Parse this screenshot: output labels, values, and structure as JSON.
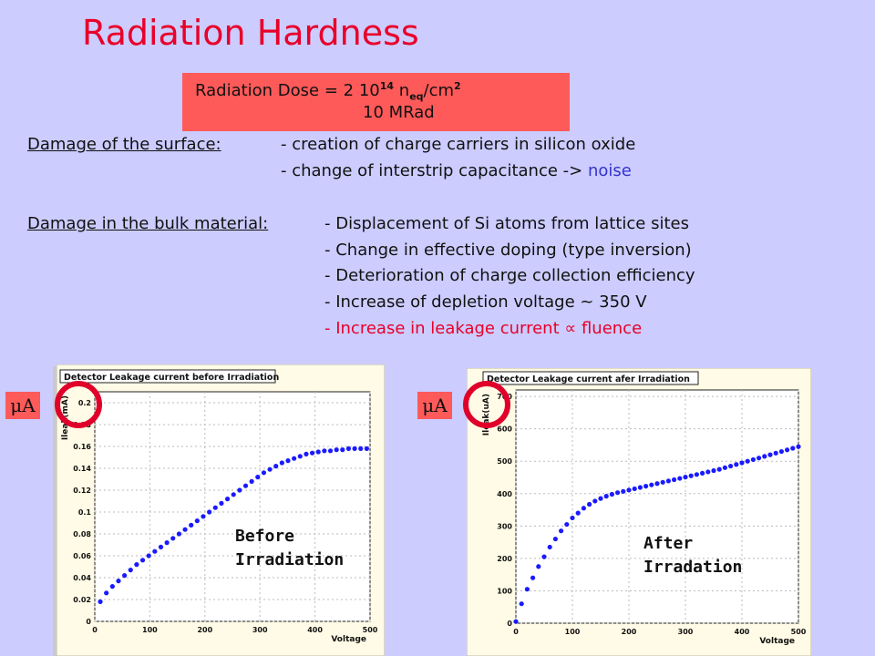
{
  "title": "Radiation Hardness",
  "dose": {
    "line1_prefix": "Radiation Dose = 2 10",
    "line1_exp": "14",
    "line1_n": " n",
    "line1_sub": "eq",
    "line1_unit": "/cm",
    "line1_unit_exp": "2",
    "line2": "10 MRad"
  },
  "surface": {
    "label": "Damage of the surface:",
    "items": [
      "- creation of charge carriers in silicon oxide",
      "- change of interstrip capacitance -> "
    ],
    "item2_highlight": "noise"
  },
  "bulk": {
    "label": "Damage in the bulk material:",
    "items": [
      "- Displacement of Si atoms from lattice sites",
      "- Change in effective doping (type inversion)",
      "- Deterioration of charge collection efficiency",
      "- Increase of depletion voltage ~ 350 V",
      "- Increase in leakage current ∝ fluence"
    ]
  },
  "unit_label": "μA",
  "chart_data": [
    {
      "type": "scatter",
      "title": "Detector Leakage current before Irradiation",
      "xlabel": "Voltage",
      "ylabel": "Ileak(mA)",
      "xlim": [
        0,
        500
      ],
      "ylim": [
        0,
        0.21
      ],
      "xticks": [
        "0",
        "100",
        "200",
        "300",
        "400",
        "500"
      ],
      "yticks": [
        "0",
        "0.02",
        "0.04",
        "0.06",
        "0.08",
        "0.1",
        "0.12",
        "0.14",
        "0.16",
        "0.18",
        "0.2"
      ],
      "annotation": [
        "Before",
        "Irradiation"
      ],
      "x": [
        10,
        21,
        32,
        43,
        54,
        65,
        76,
        87,
        98,
        109,
        120,
        131,
        142,
        153,
        164,
        175,
        186,
        197,
        208,
        219,
        230,
        241,
        252,
        263,
        274,
        285,
        296,
        307,
        318,
        329,
        340,
        351,
        362,
        373,
        384,
        395,
        406,
        417,
        428,
        439,
        450,
        461,
        472,
        483,
        494
      ],
      "y": [
        0.018,
        0.026,
        0.032,
        0.037,
        0.042,
        0.047,
        0.052,
        0.056,
        0.06,
        0.064,
        0.068,
        0.072,
        0.076,
        0.08,
        0.084,
        0.088,
        0.092,
        0.096,
        0.1,
        0.104,
        0.108,
        0.112,
        0.116,
        0.12,
        0.124,
        0.128,
        0.132,
        0.136,
        0.139,
        0.142,
        0.145,
        0.147,
        0.149,
        0.151,
        0.153,
        0.154,
        0.155,
        0.156,
        0.156,
        0.157,
        0.157,
        0.158,
        0.158,
        0.158,
        0.158
      ]
    },
    {
      "type": "scatter",
      "title": "Detector Leakage current afer Irradiation",
      "xlabel": "Voltage",
      "ylabel": "Ileak(uA)",
      "xlim": [
        0,
        500
      ],
      "ylim": [
        0,
        720
      ],
      "xticks": [
        "0",
        "100",
        "200",
        "300",
        "400",
        "500"
      ],
      "yticks": [
        "0",
        "100",
        "200",
        "300",
        "400",
        "500",
        "600",
        "700"
      ],
      "annotation": [
        "After",
        "Irradation"
      ],
      "x": [
        0,
        10,
        20,
        30,
        40,
        50,
        60,
        70,
        80,
        90,
        100,
        110,
        120,
        130,
        140,
        150,
        160,
        170,
        180,
        190,
        200,
        210,
        220,
        230,
        240,
        250,
        260,
        270,
        280,
        290,
        300,
        310,
        320,
        330,
        340,
        350,
        360,
        370,
        380,
        390,
        400,
        410,
        420,
        430,
        440,
        450,
        460,
        470,
        480,
        490,
        500
      ],
      "y": [
        5,
        60,
        105,
        140,
        175,
        205,
        235,
        260,
        285,
        305,
        325,
        340,
        355,
        367,
        377,
        385,
        392,
        398,
        403,
        407,
        411,
        415,
        419,
        423,
        427,
        431,
        435,
        439,
        443,
        447,
        451,
        455,
        459,
        463,
        467,
        471,
        475,
        480,
        485,
        490,
        495,
        500,
        505,
        510,
        515,
        520,
        525,
        530,
        535,
        540,
        545
      ]
    }
  ]
}
